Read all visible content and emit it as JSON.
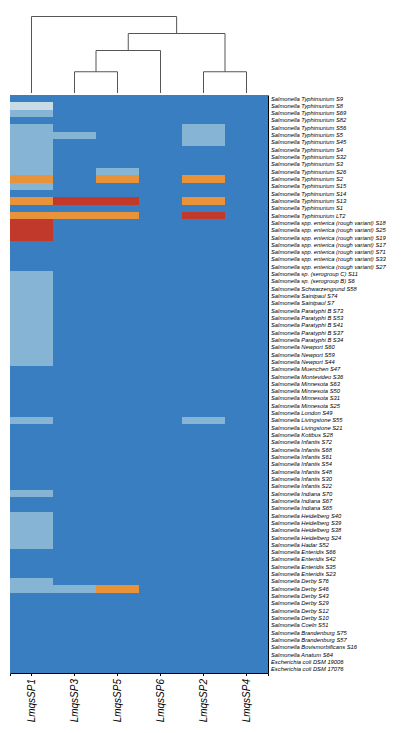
{
  "chart_data": {
    "type": "heatmap",
    "categories": [
      "LmqsSP1",
      "LmqsSP3",
      "LmqsSP5",
      "LmqsSP6",
      "LmqsSP2",
      "LmqsSP4"
    ],
    "y_categories": [
      "Salmonella Typhimurium S9",
      "Salmonella Typhimurium S8",
      "Salmonella Typhimurium S69",
      "Salmonella Typhimurium S82",
      "Salmonella Typhimurium S56",
      "Salmonella Typhimurium S5",
      "Salmonella Typhimurium S45",
      "Salmonella Typhimurium S4",
      "Salmonella Typhimurium S32",
      "Salmonella Typhimurium S3",
      "Salmonella Typhimurium S26",
      "Salmonella Typhimurium S2",
      "Salmonella Typhimurium S15",
      "Salmonella Typhimurium S14",
      "Salmonella Typhimurium S13",
      "Salmonella Typhimurium S1",
      "Salmonella Typhimurium LT2",
      "Salmonella spp. enterica (rough variant) S18",
      "Salmonella spp. enterica (rough variant) S25",
      "Salmonella spp. enterica (rough variant) S19",
      "Salmonella spp. enterica (rough variant) S17",
      "Salmonella spp. enterica (rough variant) S71",
      "Salmonella spp. enterica (rough variant) S33",
      "Salmonella spp. enterica (rough variant) S27",
      "Salmonella sp. (serogroup C) S11",
      "Salmonella sp. (serogroup B) S6",
      "Salmonella Schwarzengrund S58",
      "Salmonella Saintpaul S74",
      "Salmonella Saintpaul S7",
      "Salmonella Paratyphi B S73",
      "Salmonella Paratyphi B S53",
      "Salmonella Paratyphi B S41",
      "Salmonella Paratyphi B S37",
      "Salmonella Paratyphi B S34",
      "Salmonella Newport S60",
      "Salmonella Newport S59",
      "Salmonella Newport S44",
      "Salmonella Muenchen S47",
      "Salmonella Montevideo S36",
      "Salmonella Minnesota S63",
      "Salmonella Minnesota S50",
      "Salmonella Minnesota S31",
      "Salmonella Minnesota S25",
      "Salmonella London S49",
      "Salmonella Livingstone S55",
      "Salmonella Livingstone S21",
      "Salmonella Kottbus S28",
      "Salmonella Infantis S72",
      "Salmonella Infantis S68",
      "Salmonella Infantis S61",
      "Salmonella Infantis S54",
      "Salmonella Infantis S48",
      "Salmonella Infantis S30",
      "Salmonella Infantis S22",
      "Salmonella Indiana S70",
      "Salmonella Indiana S67",
      "Salmonella Indiana S65",
      "Salmonella Heidelberg S40",
      "Salmonella Heidelberg S39",
      "Salmonella Heidelberg S38",
      "Salmonella Heidelberg S24",
      "Salmonella Hadar S52",
      "Salmonella Enteridis S66",
      "Salmonella Enteridis S42",
      "Salmonella Enteridis S35",
      "Salmonella Enteridis S23",
      "Salmonella Derby S76",
      "Salmonella Derby S46",
      "Salmonella Derby S43",
      "Salmonella Derby S29",
      "Salmonella Derby S12",
      "Salmonella Derby S10",
      "Salmonella Coeln S51",
      "Salmonella Brandenburg S75",
      "Salmonella Brandenburg S57",
      "Salmonella Bovismorbificans S16",
      "Salmonella Anatum S64",
      "Escherichia coli DSM 19006",
      "Escherichia coli DSM 17076"
    ],
    "cell_colors": {
      "1": "#c8dce8",
      "2": "#85b4d4",
      "3": "#3a7ec2",
      "4": "#c0392b",
      "5": "#e8923a",
      "6": "#f5c99a"
    },
    "dendrogram": {
      "color": "#555555",
      "ylim": [
        0,
        10
      ],
      "merges": [
        {
          "children": [
            "LmqsSP3",
            "LmqsSP5"
          ],
          "height": 2.5
        },
        {
          "children": [
            "LmqsSP2",
            "LmqsSP4"
          ],
          "height": 2.5
        },
        {
          "children": [
            0,
            "LmqsSP6"
          ],
          "height": 5.0
        },
        {
          "children": [
            2,
            1
          ],
          "height": 7.0
        },
        {
          "children": [
            "LmqsSP1",
            3
          ],
          "height": 9.0
        }
      ]
    },
    "cells": [
      [
        3,
        3,
        3,
        3,
        3,
        3
      ],
      [
        1,
        3,
        3,
        3,
        3,
        3
      ],
      [
        2,
        3,
        3,
        3,
        3,
        3
      ],
      [
        3,
        3,
        3,
        3,
        3,
        3
      ],
      [
        2,
        3,
        3,
        3,
        2,
        3
      ],
      [
        2,
        2,
        3,
        3,
        2,
        3
      ],
      [
        2,
        3,
        3,
        3,
        2,
        3
      ],
      [
        2,
        3,
        3,
        3,
        3,
        3
      ],
      [
        2,
        3,
        3,
        3,
        3,
        3
      ],
      [
        2,
        3,
        3,
        3,
        3,
        3
      ],
      [
        2,
        3,
        2,
        3,
        3,
        3
      ],
      [
        5,
        3,
        5,
        3,
        5,
        3
      ],
      [
        2,
        3,
        3,
        3,
        3,
        3
      ],
      [
        3,
        3,
        3,
        3,
        3,
        3
      ],
      [
        5,
        4,
        4,
        3,
        5,
        3
      ],
      [
        3,
        3,
        3,
        3,
        3,
        3
      ],
      [
        5,
        5,
        5,
        3,
        4,
        3
      ],
      [
        4,
        3,
        3,
        3,
        3,
        3
      ],
      [
        4,
        3,
        3,
        3,
        3,
        3
      ],
      [
        4,
        3,
        3,
        3,
        3,
        3
      ],
      [
        3,
        3,
        3,
        3,
        3,
        3
      ],
      [
        3,
        3,
        3,
        3,
        3,
        3
      ],
      [
        3,
        3,
        3,
        3,
        3,
        3
      ],
      [
        3,
        3,
        3,
        3,
        3,
        3
      ],
      [
        2,
        3,
        3,
        3,
        3,
        3
      ],
      [
        2,
        3,
        3,
        3,
        3,
        3
      ],
      [
        2,
        3,
        3,
        3,
        3,
        3
      ],
      [
        2,
        3,
        3,
        3,
        3,
        3
      ],
      [
        2,
        3,
        3,
        3,
        3,
        3
      ],
      [
        2,
        3,
        3,
        3,
        3,
        3
      ],
      [
        2,
        3,
        3,
        3,
        3,
        3
      ],
      [
        2,
        3,
        3,
        3,
        3,
        3
      ],
      [
        2,
        3,
        3,
        3,
        3,
        3
      ],
      [
        2,
        3,
        3,
        3,
        3,
        3
      ],
      [
        2,
        3,
        3,
        3,
        3,
        3
      ],
      [
        2,
        3,
        3,
        3,
        3,
        3
      ],
      [
        2,
        3,
        3,
        3,
        3,
        3
      ],
      [
        3,
        3,
        3,
        3,
        3,
        3
      ],
      [
        3,
        3,
        3,
        3,
        3,
        3
      ],
      [
        3,
        3,
        3,
        3,
        3,
        3
      ],
      [
        3,
        3,
        3,
        3,
        3,
        3
      ],
      [
        3,
        3,
        3,
        3,
        3,
        3
      ],
      [
        3,
        3,
        3,
        3,
        3,
        3
      ],
      [
        3,
        3,
        3,
        3,
        3,
        3
      ],
      [
        2,
        3,
        3,
        3,
        2,
        3
      ],
      [
        3,
        3,
        3,
        3,
        3,
        3
      ],
      [
        3,
        3,
        3,
        3,
        3,
        3
      ],
      [
        3,
        3,
        3,
        3,
        3,
        3
      ],
      [
        3,
        3,
        3,
        3,
        3,
        3
      ],
      [
        3,
        3,
        3,
        3,
        3,
        3
      ],
      [
        3,
        3,
        3,
        3,
        3,
        3
      ],
      [
        3,
        3,
        3,
        3,
        3,
        3
      ],
      [
        3,
        3,
        3,
        3,
        3,
        3
      ],
      [
        3,
        3,
        3,
        3,
        3,
        3
      ],
      [
        2,
        3,
        3,
        3,
        3,
        3
      ],
      [
        3,
        3,
        3,
        3,
        3,
        3
      ],
      [
        3,
        3,
        3,
        3,
        3,
        3
      ],
      [
        2,
        3,
        3,
        3,
        3,
        3
      ],
      [
        2,
        3,
        3,
        3,
        3,
        3
      ],
      [
        2,
        3,
        3,
        3,
        3,
        3
      ],
      [
        2,
        3,
        3,
        3,
        3,
        3
      ],
      [
        2,
        3,
        3,
        3,
        3,
        3
      ],
      [
        3,
        3,
        3,
        3,
        3,
        3
      ],
      [
        3,
        3,
        3,
        3,
        3,
        3
      ],
      [
        3,
        3,
        3,
        3,
        3,
        3
      ],
      [
        3,
        3,
        3,
        3,
        3,
        3
      ],
      [
        2,
        3,
        3,
        3,
        3,
        3
      ],
      [
        2,
        2,
        5,
        3,
        3,
        3
      ],
      [
        3,
        3,
        3,
        3,
        3,
        3
      ],
      [
        3,
        3,
        3,
        3,
        3,
        3
      ],
      [
        3,
        3,
        3,
        3,
        3,
        3
      ],
      [
        3,
        3,
        3,
        3,
        3,
        3
      ],
      [
        3,
        3,
        3,
        3,
        3,
        3
      ],
      [
        3,
        3,
        3,
        3,
        3,
        3
      ],
      [
        3,
        3,
        3,
        3,
        3,
        3
      ],
      [
        3,
        3,
        3,
        3,
        3,
        3
      ],
      [
        3,
        3,
        3,
        3,
        3,
        3
      ],
      [
        3,
        3,
        3,
        3,
        3,
        3
      ],
      [
        3,
        3,
        3,
        3,
        3,
        3
      ]
    ],
    "grid": false
  }
}
